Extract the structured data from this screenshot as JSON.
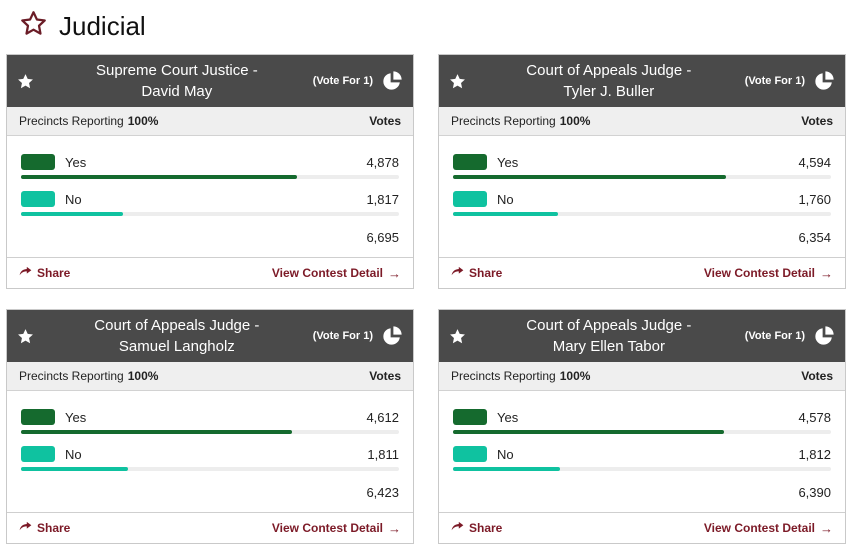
{
  "page": {
    "title": "Judicial"
  },
  "colors": {
    "header_bg": "#4a4a4a",
    "yes_green": "#156a2e",
    "no_teal": "#0fc2a0",
    "accent_maroon": "#7c1a27"
  },
  "cards": [
    {
      "title_line1": "Supreme Court Justice -",
      "title_line2": "David May",
      "vote_for": "(Vote For 1)",
      "precincts_label": "Precincts Reporting",
      "precincts_value": "100%",
      "votes_header": "Votes",
      "rows": [
        {
          "label": "Yes",
          "votes": "4,878",
          "pct": 72.9,
          "color": "#156a2e"
        },
        {
          "label": "No",
          "votes": "1,817",
          "pct": 27.1,
          "color": "#0fc2a0"
        }
      ],
      "total": "6,695",
      "share_label": "Share",
      "detail_label": "View Contest Detail",
      "detail_arrow": "→"
    },
    {
      "title_line1": "Court of Appeals Judge -",
      "title_line2": "Tyler J. Buller",
      "vote_for": "(Vote For 1)",
      "precincts_label": "Precincts Reporting",
      "precincts_value": "100%",
      "votes_header": "Votes",
      "rows": [
        {
          "label": "Yes",
          "votes": "4,594",
          "pct": 72.3,
          "color": "#156a2e"
        },
        {
          "label": "No",
          "votes": "1,760",
          "pct": 27.7,
          "color": "#0fc2a0"
        }
      ],
      "total": "6,354",
      "share_label": "Share",
      "detail_label": "View Contest Detail",
      "detail_arrow": "→"
    },
    {
      "title_line1": "Court of Appeals Judge -",
      "title_line2": "Samuel Langholz",
      "vote_for": "(Vote For 1)",
      "precincts_label": "Precincts Reporting",
      "precincts_value": "100%",
      "votes_header": "Votes",
      "rows": [
        {
          "label": "Yes",
          "votes": "4,612",
          "pct": 71.8,
          "color": "#156a2e"
        },
        {
          "label": "No",
          "votes": "1,811",
          "pct": 28.2,
          "color": "#0fc2a0"
        }
      ],
      "total": "6,423",
      "share_label": "Share",
      "detail_label": "View Contest Detail",
      "detail_arrow": "→"
    },
    {
      "title_line1": "Court of Appeals Judge -",
      "title_line2": "Mary Ellen Tabor",
      "vote_for": "(Vote For 1)",
      "precincts_label": "Precincts Reporting",
      "precincts_value": "100%",
      "votes_header": "Votes",
      "rows": [
        {
          "label": "Yes",
          "votes": "4,578",
          "pct": 71.6,
          "color": "#156a2e"
        },
        {
          "label": "No",
          "votes": "1,812",
          "pct": 28.4,
          "color": "#0fc2a0"
        }
      ],
      "total": "6,390",
      "share_label": "Share",
      "detail_label": "View Contest Detail",
      "detail_arrow": "→"
    }
  ]
}
